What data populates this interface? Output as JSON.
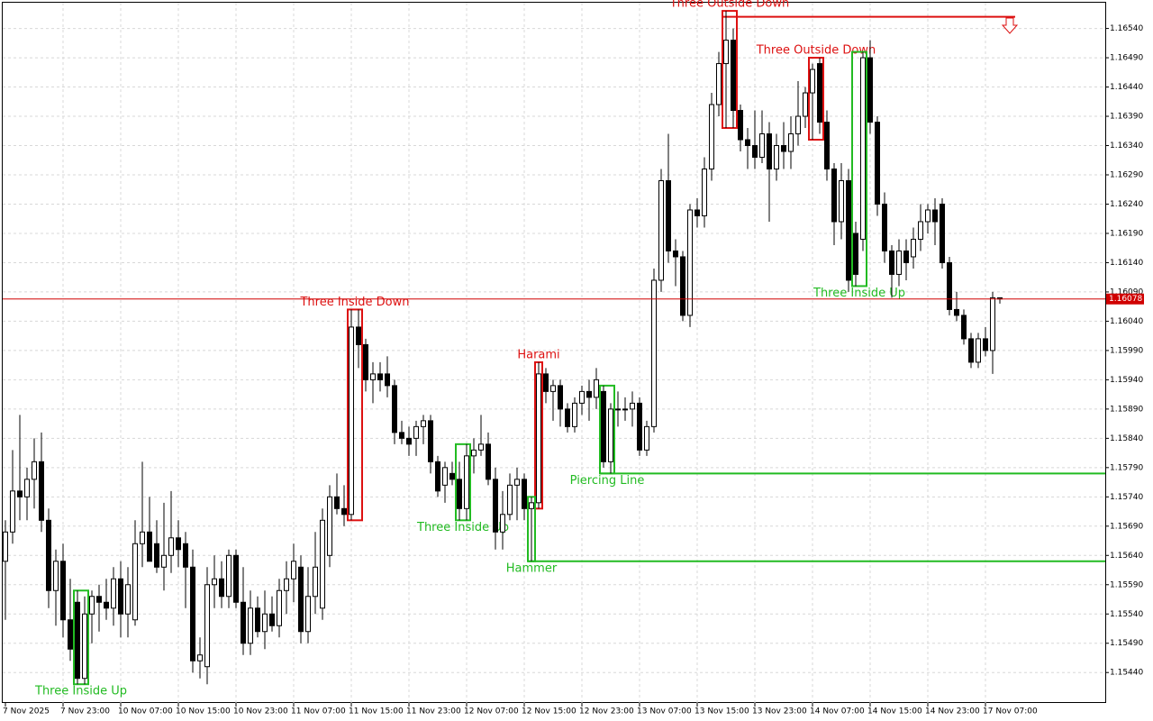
{
  "chart_data": {
    "type": "candlestick",
    "categories": [
      "7 Nov 2025",
      null,
      null,
      null,
      null,
      null,
      null,
      null,
      "7 Nov 23:00",
      null,
      null,
      null,
      null,
      null,
      null,
      null,
      "10 Nov 07:00",
      null,
      null,
      null,
      null,
      null,
      null,
      null,
      "10 Nov 15:00",
      null,
      null,
      null,
      null,
      null,
      null,
      null,
      "10 Nov 23:00",
      null,
      null,
      null,
      null,
      null,
      null,
      null,
      "11 Nov 07:00",
      null,
      null,
      null,
      null,
      null,
      null,
      null,
      "11 Nov 15:00",
      null,
      null,
      null,
      null,
      null,
      null,
      null,
      "11 Nov 23:00",
      null,
      null,
      null,
      null,
      null,
      null,
      null,
      "12 Nov 07:00",
      null,
      null,
      null,
      null,
      null,
      null,
      null,
      "12 Nov 15:00",
      null,
      null,
      null,
      null,
      null,
      null,
      null,
      "12 Nov 23:00",
      null,
      null,
      null,
      null,
      null,
      null,
      null,
      "13 Nov 07:00",
      null,
      null,
      null,
      null,
      null,
      null,
      null,
      "13 Nov 15:00",
      null,
      null,
      null,
      null,
      null,
      null,
      null,
      "13 Nov 23:00",
      null,
      null,
      null,
      null,
      null,
      null,
      null,
      "14 Nov 07:00",
      null,
      null,
      null,
      null,
      null,
      null,
      null,
      "14 Nov 15:00",
      null,
      null,
      null,
      null,
      null,
      null,
      null,
      "14 Nov 23:00",
      null,
      null,
      null,
      null,
      null,
      null,
      null,
      "17 Nov 07:00",
      null,
      null
    ],
    "candles": [
      [
        1.1563,
        1.157,
        1.1553,
        1.1568
      ],
      [
        1.1568,
        1.1582,
        1.1566,
        1.1575
      ],
      [
        1.1575,
        1.1588,
        1.157,
        1.1574
      ],
      [
        1.1574,
        1.1579,
        1.157,
        1.1577
      ],
      [
        1.1577,
        1.1584,
        1.1572,
        1.158
      ],
      [
        1.158,
        1.1585,
        1.1568,
        1.157
      ],
      [
        1.157,
        1.1572,
        1.1555,
        1.1558
      ],
      [
        1.1558,
        1.1565,
        1.1552,
        1.1563
      ],
      [
        1.1563,
        1.1566,
        1.155,
        1.1553
      ],
      [
        1.1553,
        1.156,
        1.1546,
        1.1548
      ],
      [
        1.1556,
        1.1558,
        1.1542,
        1.1543
      ],
      [
        1.1543,
        1.1557,
        1.1542,
        1.1554
      ],
      [
        1.1554,
        1.1558,
        1.1549,
        1.1557
      ],
      [
        1.1557,
        1.1559,
        1.1551,
        1.1556
      ],
      [
        1.1556,
        1.156,
        1.1553,
        1.1555
      ],
      [
        1.1555,
        1.1562,
        1.1552,
        1.156
      ],
      [
        1.156,
        1.1563,
        1.155,
        1.1554
      ],
      [
        1.1554,
        1.1562,
        1.155,
        1.1559
      ],
      [
        1.1553,
        1.157,
        1.1552,
        1.1566
      ],
      [
        1.1566,
        1.158,
        1.1562,
        1.1568
      ],
      [
        1.1568,
        1.1574,
        1.1563,
        1.1563
      ],
      [
        1.1566,
        1.157,
        1.1561,
        1.1562
      ],
      [
        1.1562,
        1.1573,
        1.1558,
        1.1564
      ],
      [
        1.1564,
        1.1575,
        1.1561,
        1.1567
      ],
      [
        1.1567,
        1.157,
        1.1562,
        1.1565
      ],
      [
        1.1566,
        1.1568,
        1.1555,
        1.1562
      ],
      [
        1.1562,
        1.1565,
        1.1544,
        1.1546
      ],
      [
        1.1546,
        1.155,
        1.1543,
        1.1547
      ],
      [
        1.1545,
        1.1562,
        1.1542,
        1.1559
      ],
      [
        1.1559,
        1.1564,
        1.1555,
        1.156
      ],
      [
        1.156,
        1.1563,
        1.1555,
        1.1557
      ],
      [
        1.1557,
        1.1565,
        1.1555,
        1.1564
      ],
      [
        1.1564,
        1.1565,
        1.1555,
        1.1556
      ],
      [
        1.1556,
        1.1562,
        1.1547,
        1.1549
      ],
      [
        1.1549,
        1.1558,
        1.1547,
        1.1555
      ],
      [
        1.1555,
        1.1557,
        1.155,
        1.1551
      ],
      [
        1.1551,
        1.1558,
        1.1548,
        1.1554
      ],
      [
        1.1554,
        1.1557,
        1.1551,
        1.1552
      ],
      [
        1.1552,
        1.156,
        1.155,
        1.1558
      ],
      [
        1.1558,
        1.1563,
        1.1554,
        1.156
      ],
      [
        1.156,
        1.1566,
        1.1556,
        1.1563
      ],
      [
        1.1562,
        1.1564,
        1.1549,
        1.1551
      ],
      [
        1.1551,
        1.1562,
        1.1549,
        1.1557
      ],
      [
        1.1557,
        1.1568,
        1.1554,
        1.1562
      ],
      [
        1.1555,
        1.1572,
        1.1553,
        1.157
      ],
      [
        1.1564,
        1.1576,
        1.1562,
        1.1574
      ],
      [
        1.1574,
        1.1578,
        1.1571,
        1.1572
      ],
      [
        1.1572,
        1.1576,
        1.1569,
        1.1571
      ],
      [
        1.1571,
        1.1606,
        1.157,
        1.1603
      ],
      [
        1.1603,
        1.1606,
        1.1596,
        1.16
      ],
      [
        1.16,
        1.1601,
        1.1592,
        1.1594
      ],
      [
        1.1594,
        1.1597,
        1.159,
        1.1595
      ],
      [
        1.1595,
        1.1597,
        1.1592,
        1.1594
      ],
      [
        1.1595,
        1.1598,
        1.1591,
        1.1593
      ],
      [
        1.1593,
        1.1594,
        1.1583,
        1.1585
      ],
      [
        1.1585,
        1.1587,
        1.1583,
        1.1584
      ],
      [
        1.1584,
        1.1586,
        1.1581,
        1.1583
      ],
      [
        1.1584,
        1.1587,
        1.1581,
        1.1586
      ],
      [
        1.1586,
        1.1588,
        1.1583,
        1.1587
      ],
      [
        1.1587,
        1.1588,
        1.1578,
        1.158
      ],
      [
        1.158,
        1.1581,
        1.1574,
        1.1575
      ],
      [
        1.1576,
        1.158,
        1.1573,
        1.1579
      ],
      [
        1.1578,
        1.158,
        1.1576,
        1.1577
      ],
      [
        1.1577,
        1.158,
        1.157,
        1.1572
      ],
      [
        1.1572,
        1.1583,
        1.157,
        1.1581
      ],
      [
        1.1581,
        1.1584,
        1.1578,
        1.1582
      ],
      [
        1.1582,
        1.1588,
        1.1581,
        1.1583
      ],
      [
        1.1583,
        1.1585,
        1.1576,
        1.1577
      ],
      [
        1.1577,
        1.1579,
        1.1565,
        1.1568
      ],
      [
        1.1568,
        1.1575,
        1.1565,
        1.1571
      ],
      [
        1.1571,
        1.1578,
        1.157,
        1.1576
      ],
      [
        1.1576,
        1.1579,
        1.157,
        1.1577
      ],
      [
        1.1577,
        1.1578,
        1.157,
        1.1572
      ],
      [
        1.1572,
        1.1574,
        1.1563,
        1.1573
      ],
      [
        1.1573,
        1.1597,
        1.1572,
        1.1595
      ],
      [
        1.1595,
        1.1596,
        1.159,
        1.1592
      ],
      [
        1.1592,
        1.1594,
        1.1587,
        1.1593
      ],
      [
        1.1593,
        1.1594,
        1.1586,
        1.1589
      ],
      [
        1.1589,
        1.159,
        1.1585,
        1.1586
      ],
      [
        1.1586,
        1.1591,
        1.1585,
        1.159
      ],
      [
        1.159,
        1.1593,
        1.1588,
        1.1592
      ],
      [
        1.1592,
        1.1594,
        1.1587,
        1.1591
      ],
      [
        1.1591,
        1.1596,
        1.1589,
        1.1594
      ],
      [
        1.1592,
        1.1593,
        1.1579,
        1.158
      ],
      [
        1.158,
        1.159,
        1.1578,
        1.1589
      ],
      [
        1.1589,
        1.1592,
        1.1586,
        1.1589
      ],
      [
        1.1589,
        1.1591,
        1.1587,
        1.1589
      ],
      [
        1.1589,
        1.1592,
        1.1586,
        1.159
      ],
      [
        1.159,
        1.1591,
        1.1581,
        1.1582
      ],
      [
        1.1582,
        1.1587,
        1.1581,
        1.1586
      ],
      [
        1.1586,
        1.1613,
        1.1585,
        1.1611
      ],
      [
        1.1611,
        1.163,
        1.1609,
        1.1628
      ],
      [
        1.1628,
        1.1636,
        1.1614,
        1.1616
      ],
      [
        1.1616,
        1.1618,
        1.161,
        1.1615
      ],
      [
        1.1615,
        1.1616,
        1.1604,
        1.1605
      ],
      [
        1.1605,
        1.1624,
        1.1603,
        1.1623
      ],
      [
        1.1623,
        1.1625,
        1.162,
        1.1622
      ],
      [
        1.1622,
        1.1632,
        1.162,
        1.163
      ],
      [
        1.163,
        1.1643,
        1.1628,
        1.1641
      ],
      [
        1.1641,
        1.165,
        1.1639,
        1.1648
      ],
      [
        1.1648,
        1.1657,
        1.1637,
        1.1652
      ],
      [
        1.1652,
        1.1654,
        1.1637,
        1.164
      ],
      [
        1.164,
        1.1641,
        1.1633,
        1.1635
      ],
      [
        1.1635,
        1.1637,
        1.163,
        1.1634
      ],
      [
        1.1634,
        1.164,
        1.163,
        1.1632
      ],
      [
        1.1632,
        1.164,
        1.1631,
        1.1636
      ],
      [
        1.1636,
        1.1638,
        1.1621,
        1.163
      ],
      [
        1.163,
        1.1636,
        1.1628,
        1.1634
      ],
      [
        1.1634,
        1.1638,
        1.163,
        1.1633
      ],
      [
        1.1633,
        1.1639,
        1.163,
        1.1636
      ],
      [
        1.1636,
        1.1645,
        1.1634,
        1.1639
      ],
      [
        1.1639,
        1.1644,
        1.1637,
        1.1643
      ],
      [
        1.1643,
        1.1648,
        1.1635,
        1.1647
      ],
      [
        1.1648,
        1.1649,
        1.1636,
        1.1638
      ],
      [
        1.1638,
        1.164,
        1.1628,
        1.163
      ],
      [
        1.163,
        1.1631,
        1.1617,
        1.1621
      ],
      [
        1.1621,
        1.1631,
        1.1618,
        1.1628
      ],
      [
        1.1628,
        1.163,
        1.1609,
        1.1611
      ],
      [
        1.1619,
        1.1621,
        1.161,
        1.1612
      ],
      [
        1.1618,
        1.165,
        1.1616,
        1.1649
      ],
      [
        1.1649,
        1.1652,
        1.1636,
        1.1638
      ],
      [
        1.1638,
        1.1639,
        1.1622,
        1.1624
      ],
      [
        1.1624,
        1.1626,
        1.1614,
        1.1616
      ],
      [
        1.1616,
        1.1617,
        1.1608,
        1.1612
      ],
      [
        1.1612,
        1.1618,
        1.161,
        1.1616
      ],
      [
        1.1616,
        1.1618,
        1.1611,
        1.1614
      ],
      [
        1.1615,
        1.162,
        1.1613,
        1.1618
      ],
      [
        1.1618,
        1.1624,
        1.1616,
        1.1621
      ],
      [
        1.1621,
        1.1624,
        1.1619,
        1.1623
      ],
      [
        1.1623,
        1.1625,
        1.1617,
        1.1621
      ],
      [
        1.1624,
        1.1625,
        1.1613,
        1.1614
      ],
      [
        1.1614,
        1.1615,
        1.1605,
        1.1606
      ],
      [
        1.1606,
        1.1609,
        1.1604,
        1.1605
      ],
      [
        1.1605,
        1.1606,
        1.16,
        1.1601
      ],
      [
        1.1601,
        1.1602,
        1.1596,
        1.1597
      ],
      [
        1.1597,
        1.1602,
        1.1596,
        1.1601
      ],
      [
        1.1601,
        1.1603,
        1.1598,
        1.1599
      ],
      [
        1.1599,
        1.1609,
        1.1595,
        1.1608
      ],
      [
        1.1608,
        1.1608,
        1.1607,
        1.16078
      ]
    ],
    "ylim": [
      1.15388,
      1.16584
    ],
    "yticks": [
      {
        "value": 1.1654,
        "label": "1.16540"
      },
      {
        "value": 1.1649,
        "label": "1.16490"
      },
      {
        "value": 1.1644,
        "label": "1.16440"
      },
      {
        "value": 1.1639,
        "label": "1.16390"
      },
      {
        "value": 1.1634,
        "label": "1.16340"
      },
      {
        "value": 1.1629,
        "label": "1.16290"
      },
      {
        "value": 1.1624,
        "label": "1.16240"
      },
      {
        "value": 1.1619,
        "label": "1.16190"
      },
      {
        "value": 1.1614,
        "label": "1.16140"
      },
      {
        "value": 1.1609,
        "label": "1.16090"
      },
      {
        "value": 1.1604,
        "label": "1.16040"
      },
      {
        "value": 1.1599,
        "label": "1.15990"
      },
      {
        "value": 1.1594,
        "label": "1.15940"
      },
      {
        "value": 1.1589,
        "label": "1.15890"
      },
      {
        "value": 1.1584,
        "label": "1.15840"
      },
      {
        "value": 1.1579,
        "label": "1.15790"
      },
      {
        "value": 1.1574,
        "label": "1.15740"
      },
      {
        "value": 1.1569,
        "label": "1.15690"
      },
      {
        "value": 1.1564,
        "label": "1.15640"
      },
      {
        "value": 1.1559,
        "label": "1.15590"
      },
      {
        "value": 1.1554,
        "label": "1.15540"
      },
      {
        "value": 1.1549,
        "label": "1.15490"
      },
      {
        "value": 1.1544,
        "label": "1.15440"
      }
    ],
    "grid": true,
    "current_price": 1.16078,
    "current_price_color": "#d00000",
    "annotations": [
      {
        "text": "Three Inside Up",
        "color": "#22bb22"
      },
      {
        "text": "Three Inside Down",
        "color": "#dd1111"
      },
      {
        "text": "Three Inside Up",
        "color": "#22bb22"
      },
      {
        "text": "Harami",
        "color": "#dd1111"
      },
      {
        "text": "Hammer",
        "color": "#22bb22",
        "level": 1.1563
      },
      {
        "text": "Piercing Line",
        "color": "#22bb22",
        "level": 1.1578
      },
      {
        "text": "Three Outside Down",
        "color": "#dd1111",
        "level": 1.1656
      },
      {
        "text": "Three Outside Down",
        "color": "#dd1111"
      },
      {
        "text": "Three Inside Up",
        "color": "#22bb22"
      }
    ]
  }
}
